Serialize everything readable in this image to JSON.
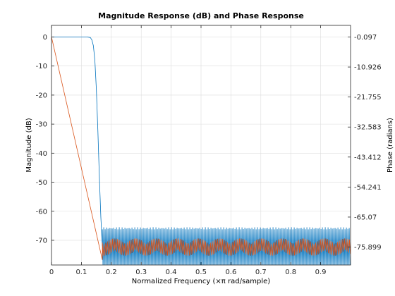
{
  "chart_data": {
    "type": "line",
    "title": "Magnitude Response (dB) and Phase Response",
    "xlabel": "Normalized Frequency (×π rad/sample)",
    "ylabel": "Magnitude (dB)",
    "ylabel_right": "Phase (radians)",
    "xlim": [
      0,
      1
    ],
    "ylim": [
      -78.5,
      4
    ],
    "xticks": [
      0,
      0.1,
      0.2,
      0.3,
      0.4,
      0.5,
      0.6,
      0.7,
      0.8,
      0.9
    ],
    "xtick_labels": [
      "0",
      "0.1",
      "0.2",
      "0.3",
      "0.4",
      "0.5",
      "0.6",
      "0.7",
      "0.8",
      "0.9"
    ],
    "yticks": [
      0,
      -10,
      -20,
      -30,
      -40,
      -50,
      -60,
      -70
    ],
    "ytick_labels": [
      "0",
      "-10",
      "-20",
      "-30",
      "-40",
      "-50",
      "-60",
      "-70"
    ],
    "y2lim": [
      -82.37,
      4.1
    ],
    "y2ticks": [
      -0.097,
      -10.926,
      -21.755,
      -32.583,
      -43.412,
      -54.241,
      -65.07,
      -75.899
    ],
    "y2tick_labels": [
      "-0.097",
      "-10.926",
      "-21.755",
      "-32.583",
      "-43.412",
      "-54.241",
      "-65.07",
      "-75.899"
    ],
    "grid": true,
    "series": [
      {
        "axis": "left",
        "color": "#0072BD",
        "passband": {
          "x": [
            0,
            0.12
          ],
          "y": 0
        },
        "transition": {
          "x": [
            0.12,
            0.13,
            0.135,
            0.14,
            0.145,
            0.15,
            0.155,
            0.16,
            0.165,
            0.17
          ],
          "y": [
            0,
            -0.2,
            -1,
            -3,
            -8,
            -18,
            -32,
            -48,
            -62,
            -72
          ]
        },
        "stopband": {
          "x": [
            0.17,
            1.0
          ],
          "ripple_top": -65.5,
          "ripple_bottom": -78.5
        }
      },
      {
        "axis": "right",
        "color": "#D95319",
        "ramp": {
          "x": [
            0,
            0.17
          ],
          "y": [
            -0.097,
            -80.5
          ]
        },
        "stopband": {
          "x": [
            0.17,
            1.0
          ],
          "center": -75.9,
          "spread": [
            -79.0,
            -72.8
          ]
        }
      }
    ]
  }
}
